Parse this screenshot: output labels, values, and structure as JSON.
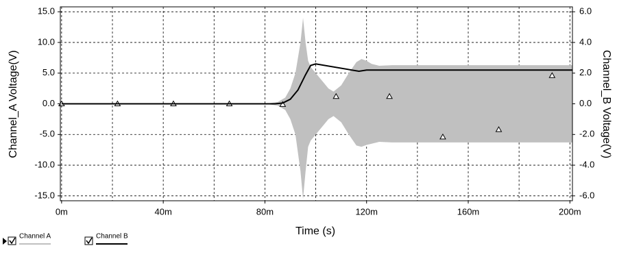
{
  "chart_data": {
    "type": "envelope",
    "xlabel": "Time (s)",
    "ylabel": "Channel_A Voltage(V)",
    "y2label": "Channel_B Voltage(V)",
    "xlim": [
      -0.5,
      201
    ],
    "ylim": [
      -15.8,
      15.8
    ],
    "y2lim": [
      -6.32,
      6.32
    ],
    "xticks": [
      {
        "value": 0,
        "label": "0m"
      },
      {
        "value": 40,
        "label": "40m"
      },
      {
        "value": 80,
        "label": "80m"
      },
      {
        "value": 120,
        "label": "120m"
      },
      {
        "value": 160,
        "label": "160m"
      },
      {
        "value": 200,
        "label": "200m"
      }
    ],
    "xminorticks": [
      20,
      60,
      100,
      140,
      180
    ],
    "yticks": [
      {
        "value": 15,
        "label": "15.0"
      },
      {
        "value": 10,
        "label": "10.0"
      },
      {
        "value": 5,
        "label": "5.0"
      },
      {
        "value": 0,
        "label": "0.0"
      },
      {
        "value": -5,
        "label": "-5.0"
      },
      {
        "value": -10,
        "label": "-10.0"
      },
      {
        "value": -15,
        "label": "-15.0"
      }
    ],
    "y2ticks": [
      {
        "value": 6,
        "label": "6.0"
      },
      {
        "value": 4,
        "label": "4.0"
      },
      {
        "value": 2,
        "label": "2.0"
      },
      {
        "value": 0,
        "label": "0.0"
      },
      {
        "value": -2,
        "label": "-2.0"
      },
      {
        "value": -4,
        "label": "-4.0"
      },
      {
        "value": -6,
        "label": "-6.0"
      }
    ],
    "grid": true,
    "series": [
      {
        "name": "Channel A",
        "color": "#c0c0c0",
        "x": [
          0,
          80,
          85,
          88,
          90,
          92,
          94,
          95,
          96,
          97,
          98,
          100,
          103,
          105,
          107,
          110,
          113,
          116,
          118,
          120,
          122,
          125,
          130,
          201
        ],
        "values": [
          0,
          0,
          0.3,
          1,
          2.5,
          5,
          10,
          14,
          10,
          7,
          6,
          5,
          3.5,
          2.5,
          2,
          3,
          5,
          6.8,
          7.3,
          7,
          6.5,
          6.2,
          6.3,
          6.3
        ],
        "lower": [
          0,
          0,
          -0.3,
          -1,
          -2.5,
          -5,
          -11,
          -15.5,
          -11,
          -7,
          -6,
          -5,
          -3.5,
          -2.5,
          -2,
          -3,
          -5,
          -6.8,
          -7,
          -6.7,
          -6.5,
          -6.2,
          -6.3,
          -6.3
        ],
        "marker_x": [
          0,
          22,
          44,
          66,
          87,
          108,
          129,
          150,
          172,
          193
        ],
        "marker_values": [
          0,
          0,
          0,
          0,
          -0.1,
          1.2,
          1.2,
          -5.4,
          -4.2,
          4.6
        ]
      },
      {
        "name": "Channel B",
        "color": "#000000",
        "axis": "y2",
        "x": [
          0,
          84,
          87,
          90,
          93,
          96,
          98,
          100,
          117,
          120,
          201
        ],
        "values": [
          0,
          0,
          0.05,
          0.3,
          0.9,
          1.9,
          2.5,
          2.6,
          2.12,
          2.2,
          2.2
        ]
      }
    ]
  }
}
